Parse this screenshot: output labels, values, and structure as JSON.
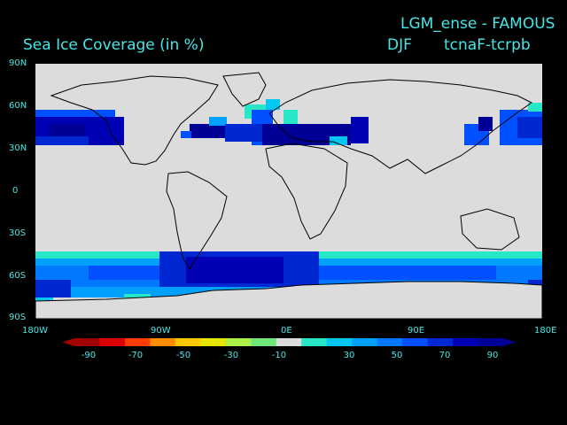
{
  "header": {
    "title_right": "LGM_ense - FAMOUS",
    "season": "DJF",
    "experiment": "tcnaF-tcrpb",
    "title_left": "Sea Ice Coverage (in %)"
  },
  "map": {
    "type": "gridded_difference_map",
    "projection": "equirectangular",
    "lat_labels": [
      "90N",
      "60N",
      "30N",
      "0",
      "30S",
      "60S",
      "90S"
    ],
    "lon_labels": [
      "180W",
      "90W",
      "0E",
      "90E",
      "180E"
    ],
    "land_color": "#dcdcdc",
    "ocean_color": "#dcdcdc",
    "ice_regions": [
      {
        "region": "North Pacific",
        "value_range": [
          50,
          100
        ]
      },
      {
        "region": "North Atlantic",
        "value_range": [
          50,
          100
        ]
      },
      {
        "region": "Southern Ocean",
        "value_range": [
          30,
          100
        ]
      }
    ]
  },
  "colorbar": {
    "ticks": [
      "-90",
      "-70",
      "-50",
      "-30",
      "-10",
      "30",
      "50",
      "70",
      "90"
    ],
    "colors": [
      "#a00000",
      "#dc0000",
      "#ff3c00",
      "#ff8c00",
      "#ffc800",
      "#e6e600",
      "#aaf046",
      "#6ee678",
      "#dcdcdc",
      "#28e6c8",
      "#00c8f0",
      "#00a0ff",
      "#0078ff",
      "#0050ff",
      "#0028d2",
      "#0000b4",
      "#000096"
    ]
  }
}
